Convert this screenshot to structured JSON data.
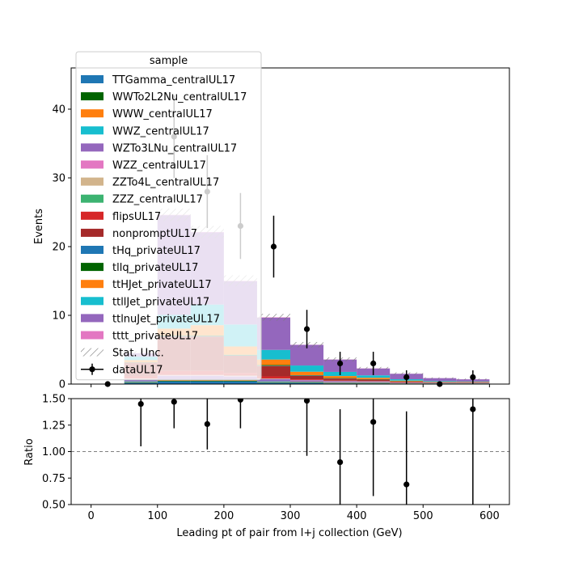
{
  "chart_data": [
    {
      "type": "bar",
      "stacked": true,
      "xlabel": "",
      "ylabel": "Events",
      "xlim": [
        -30,
        630
      ],
      "ylim": [
        0,
        46
      ],
      "xticks": [
        0,
        100,
        200,
        300,
        400,
        500,
        600
      ],
      "yticks": [
        0,
        10,
        20,
        30,
        40
      ],
      "bin_edges": [
        50,
        100,
        150,
        200,
        250,
        300,
        350,
        400,
        450,
        500,
        550,
        600
      ],
      "legend": {
        "title": "sample",
        "placement": "upper-left",
        "stat_unc_label": "Stat. Unc.",
        "data_label": "dataUL17"
      },
      "series": [
        {
          "name": "TTGamma_centralUL17",
          "color": "#1f77b4",
          "values": [
            0.2,
            0.4,
            0.4,
            0.4,
            0.2,
            0.2,
            0.1,
            0.1,
            0.05,
            0.05,
            0.05
          ]
        },
        {
          "name": "WWTo2L2Nu_centralUL17",
          "color": "#006400",
          "values": [
            0.05,
            0.1,
            0.1,
            0.1,
            0.05,
            0.05,
            0.05,
            0.05,
            0.02,
            0.02,
            0.02
          ]
        },
        {
          "name": "WWW_centralUL17",
          "color": "#ff7f0e",
          "values": [
            0.05,
            0.1,
            0.1,
            0.1,
            0.05,
            0.05,
            0.05,
            0.05,
            0.02,
            0.02,
            0.02
          ]
        },
        {
          "name": "WWZ_centralUL17",
          "color": "#17becf",
          "values": [
            0.1,
            0.1,
            0.1,
            0.1,
            0.1,
            0.05,
            0.05,
            0.05,
            0.02,
            0.02,
            0.02
          ]
        },
        {
          "name": "WZTo3LNu_centralUL17",
          "color": "#9467bd",
          "values": [
            0.3,
            0.5,
            0.5,
            0.4,
            0.3,
            0.2,
            0.15,
            0.1,
            0.05,
            0.05,
            0.05
          ]
        },
        {
          "name": "WZZ_centralUL17",
          "color": "#e377c2",
          "values": [
            0.05,
            0.05,
            0.05,
            0.05,
            0.05,
            0.02,
            0.02,
            0.02,
            0.02,
            0.01,
            0.01
          ]
        },
        {
          "name": "ZZTo4L_centralUL17",
          "color": "#d2b48c",
          "values": [
            0.05,
            0.05,
            0.05,
            0.05,
            0.05,
            0.02,
            0.02,
            0.02,
            0.02,
            0.01,
            0.01
          ]
        },
        {
          "name": "ZZZ_centralUL17",
          "color": "#3cb371",
          "values": [
            0.02,
            0.02,
            0.02,
            0.02,
            0.02,
            0.01,
            0.01,
            0.01,
            0.01,
            0.01,
            0.01
          ]
        },
        {
          "name": "flipsUL17",
          "color": "#d62728",
          "values": [
            0.3,
            0.6,
            0.6,
            0.4,
            0.3,
            0.1,
            0.05,
            0.05,
            0.05,
            0.02,
            0.02
          ]
        },
        {
          "name": "nonpromptUL17",
          "color": "#a52a2a",
          "values": [
            2.0,
            5.0,
            5.0,
            2.5,
            1.5,
            0.5,
            0.3,
            0.2,
            0.1,
            0.05,
            0.05
          ]
        },
        {
          "name": "tHq_privateUL17",
          "color": "#1f77b4",
          "values": [
            0.02,
            0.05,
            0.05,
            0.05,
            0.05,
            0.05,
            0.02,
            0.02,
            0.02,
            0.01,
            0.01
          ]
        },
        {
          "name": "tllq_privateUL17",
          "color": "#006400",
          "values": [
            0.05,
            0.1,
            0.1,
            0.1,
            0.1,
            0.05,
            0.05,
            0.05,
            0.02,
            0.02,
            0.02
          ]
        },
        {
          "name": "ttHJet_privateUL17",
          "color": "#ff7f0e",
          "values": [
            0.3,
            1.0,
            1.5,
            1.2,
            0.8,
            0.5,
            0.3,
            0.2,
            0.1,
            0.05,
            0.05
          ]
        },
        {
          "name": "ttllJet_privateUL17",
          "color": "#17becf",
          "values": [
            0.5,
            2.0,
            3.0,
            3.2,
            1.4,
            0.9,
            0.6,
            0.35,
            0.2,
            0.1,
            0.05
          ]
        },
        {
          "name": "ttlnuJet_privateUL17",
          "color": "#9467bd",
          "values": [
            0.5,
            14.5,
            10.5,
            6.3,
            4.7,
            3.0,
            1.8,
            1.0,
            0.8,
            0.42,
            0.3
          ]
        },
        {
          "name": "tttt_privateUL17",
          "color": "#e377c2",
          "values": [
            0.02,
            0.05,
            0.05,
            0.05,
            0.05,
            0.02,
            0.02,
            0.02,
            0.01,
            0.01,
            0.01
          ]
        }
      ],
      "stat_unc": [
        0.3,
        0.9,
        0.9,
        0.8,
        0.5,
        0.4,
        0.3,
        0.2,
        0.2,
        0.1,
        0.1
      ],
      "data_points": [
        {
          "x": 25,
          "y": 0,
          "err": 0
        },
        {
          "x": 125,
          "y": 36,
          "err": 6
        },
        {
          "x": 175,
          "y": 28,
          "err": 5.3
        },
        {
          "x": 225,
          "y": 23,
          "err": 4.8
        },
        {
          "x": 275,
          "y": 20,
          "err": 4.5
        },
        {
          "x": 325,
          "y": 8,
          "err": 2.8
        },
        {
          "x": 375,
          "y": 3,
          "err": 1.7
        },
        {
          "x": 425,
          "y": 3,
          "err": 1.7
        },
        {
          "x": 475,
          "y": 1,
          "err": 1
        },
        {
          "x": 525,
          "y": 0,
          "err": 0
        },
        {
          "x": 575,
          "y": 1,
          "err": 1
        }
      ]
    },
    {
      "type": "scatter",
      "xlabel": "Leading pt of pair from l+j collection (GeV)",
      "ylabel": "Ratio",
      "xlim": [
        -30,
        630
      ],
      "ylim": [
        0.5,
        1.5
      ],
      "xticks": [
        0,
        100,
        200,
        300,
        400,
        500,
        600
      ],
      "yticks": [
        0.5,
        0.75,
        1.0,
        1.25,
        1.5
      ],
      "ytick_labels": [
        "0.50",
        "0.75",
        "1.00",
        "1.25",
        "1.50"
      ],
      "reference_line": 1.0,
      "points": [
        {
          "x": 75,
          "y": 1.45,
          "err_low": 0.4,
          "err_high": 0.6
        },
        {
          "x": 125,
          "y": 1.47,
          "err_low": 0.25,
          "err_high": 0.25
        },
        {
          "x": 175,
          "y": 1.26,
          "err_low": 0.24,
          "err_high": 0.24
        },
        {
          "x": 225,
          "y": 1.49,
          "err_low": 0.27,
          "err_high": 0.27
        },
        {
          "x": 325,
          "y": 1.48,
          "err_low": 0.52,
          "err_high": 0.52
        },
        {
          "x": 375,
          "y": 0.9,
          "err_low": 0.5,
          "err_high": 0.5
        },
        {
          "x": 425,
          "y": 1.28,
          "err_low": 0.7,
          "err_high": 0.7
        },
        {
          "x": 475,
          "y": 0.69,
          "err_low": 0.69,
          "err_high": 0.69
        },
        {
          "x": 575,
          "y": 1.4,
          "err_low": 1.4,
          "err_high": 1.4
        }
      ]
    }
  ]
}
